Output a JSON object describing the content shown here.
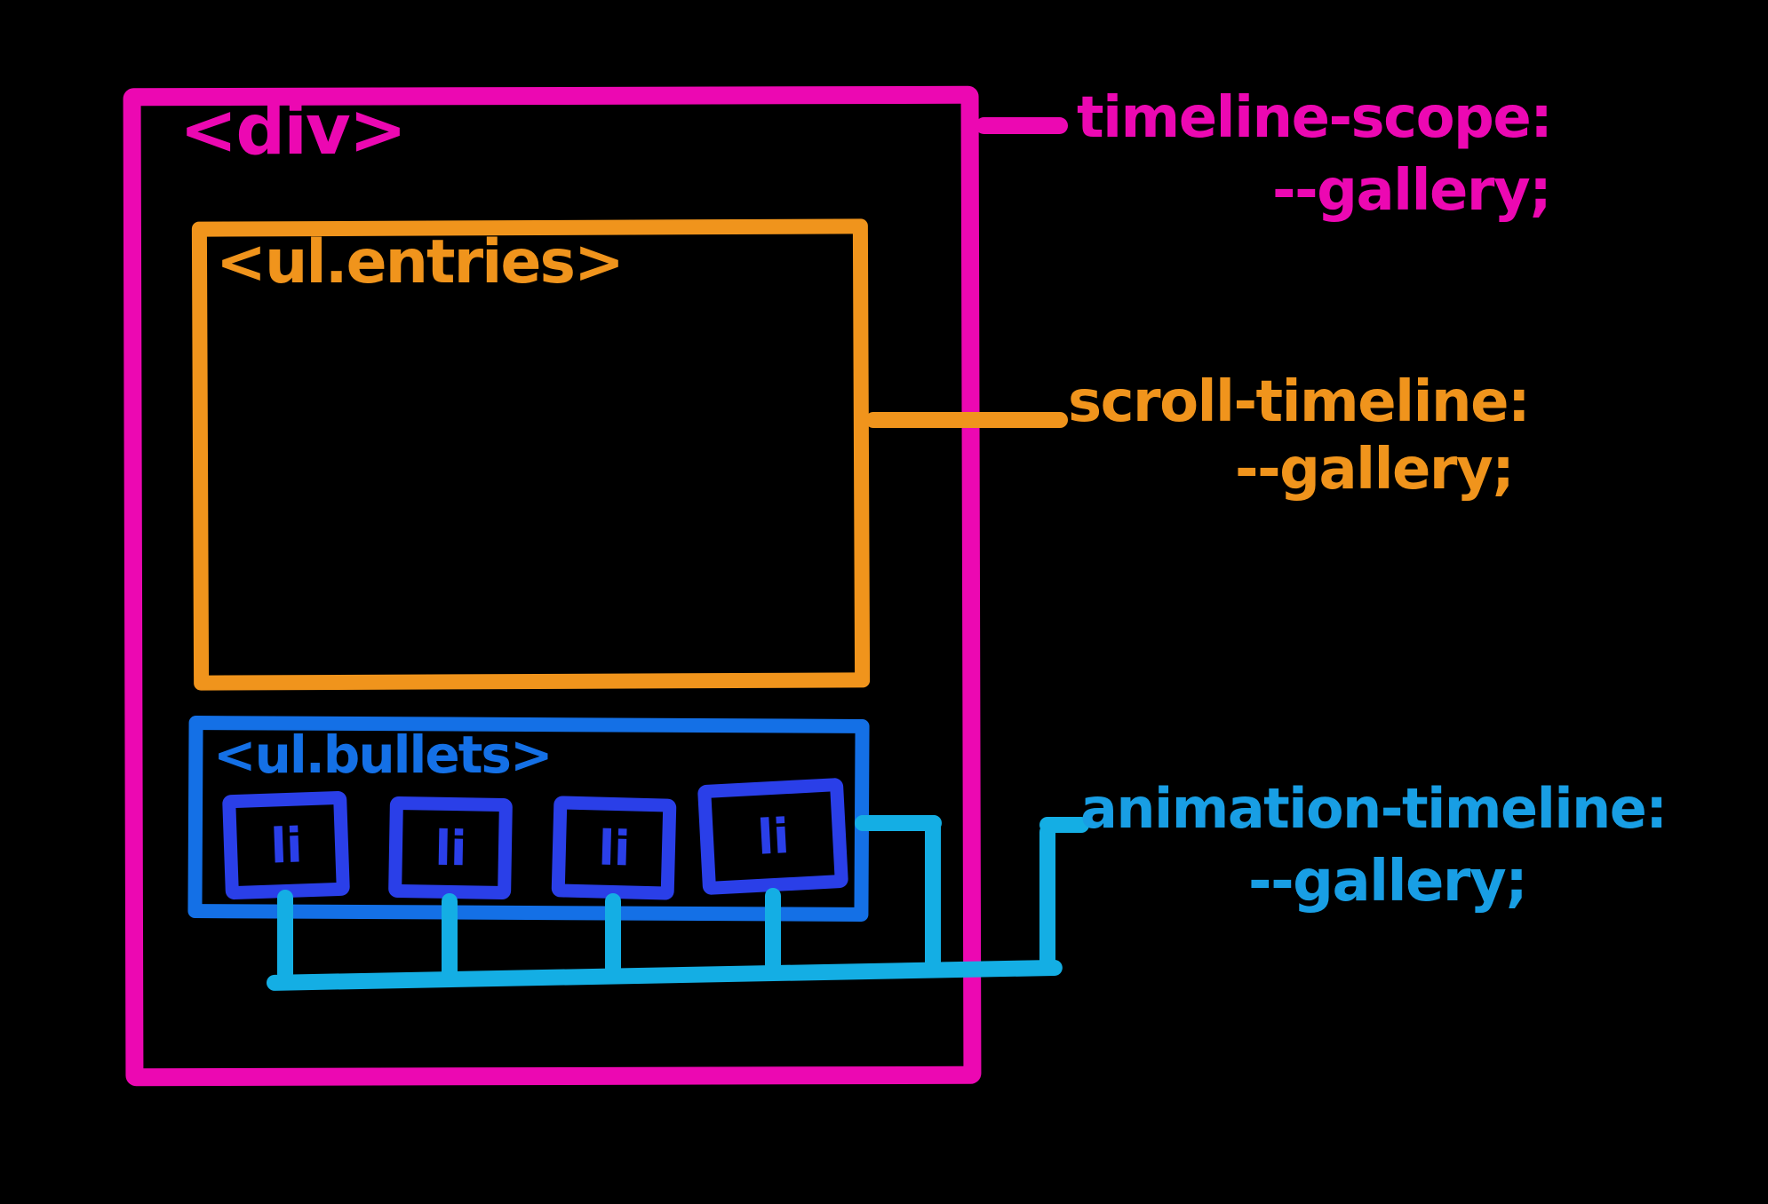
{
  "diagram": {
    "outer_box": {
      "label": "<div>"
    },
    "entries_box": {
      "label": "<ul.entries>"
    },
    "bullets_box": {
      "label": "<ul.bullets>",
      "items": [
        {
          "label": "li"
        },
        {
          "label": "li"
        },
        {
          "label": "li"
        },
        {
          "label": "li"
        }
      ]
    },
    "annotations": {
      "timeline_scope": {
        "property": "timeline-scope:",
        "value": "--gallery;"
      },
      "scroll_timeline": {
        "property": "scroll-timeline:",
        "value": "--gallery;"
      },
      "animation_timeline": {
        "property": "animation-timeline:",
        "value": "--gallery;"
      }
    },
    "colors": {
      "background": "#000000",
      "outer_box_pink": "#ec08b2",
      "entries_box_orange": "#f0941c",
      "bullets_box_blue": "#1470e6",
      "li_box_dark_blue": "#2a3fe8",
      "connector_cyan": "#14aee4",
      "animation_annotation_blue": "#189ee4"
    }
  }
}
